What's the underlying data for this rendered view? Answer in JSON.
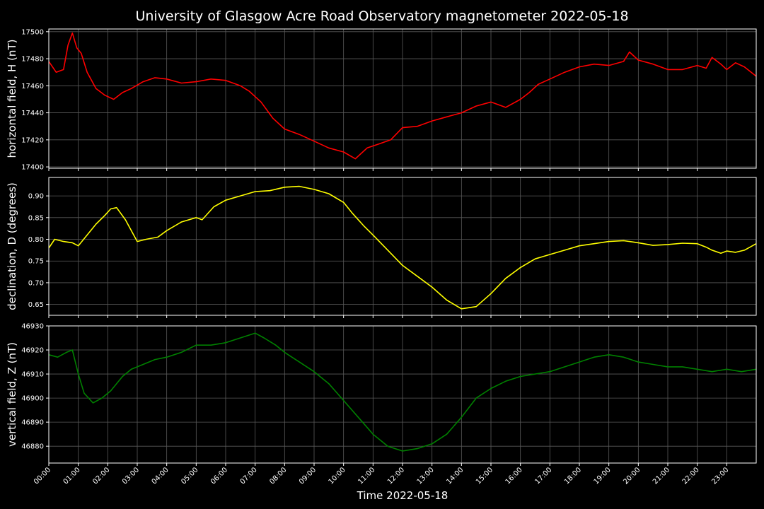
{
  "chart_data": {
    "title": "University of Glasgow Acre Road Observatory magnetometer 2022-05-18",
    "xlabel": "Time 2022-05-18",
    "x_ticks": [
      "00:00",
      "01:00",
      "02:00",
      "03:00",
      "04:00",
      "05:00",
      "06:00",
      "07:00",
      "08:00",
      "09:00",
      "10:00",
      "11:00",
      "12:00",
      "13:00",
      "14:00",
      "15:00",
      "16:00",
      "17:00",
      "18:00",
      "19:00",
      "20:00",
      "21:00",
      "22:00",
      "23:00"
    ],
    "xlim_hours": [
      0,
      24
    ],
    "grid": true,
    "panels": [
      {
        "type": "line",
        "ylabel": "horizontal field, H (nT)",
        "color": "#ff0000",
        "ylim": [
          17399,
          17502
        ],
        "y_ticks": [
          "17400",
          "17420",
          "17440",
          "17460",
          "17480",
          "17500"
        ],
        "y_tick_values": [
          17400,
          17420,
          17440,
          17460,
          17480,
          17500
        ],
        "x_hours": [
          0,
          0.25,
          0.5,
          0.65,
          0.8,
          0.95,
          1.1,
          1.3,
          1.6,
          1.9,
          2.2,
          2.5,
          2.8,
          3.2,
          3.6,
          4.0,
          4.5,
          5.0,
          5.5,
          6.0,
          6.5,
          6.8,
          7.2,
          7.6,
          8.0,
          8.5,
          9.0,
          9.5,
          10.0,
          10.4,
          10.8,
          11.2,
          11.6,
          12.0,
          12.5,
          13.0,
          13.5,
          14.0,
          14.5,
          15.0,
          15.5,
          16.0,
          16.3,
          16.6,
          17.0,
          17.5,
          18.0,
          18.5,
          19.0,
          19.5,
          19.7,
          20.0,
          20.5,
          21.0,
          21.5,
          22.0,
          22.3,
          22.5,
          22.8,
          23.0,
          23.3,
          23.6,
          24.0
        ],
        "values": [
          17478,
          17470,
          17472,
          17490,
          17499,
          17488,
          17484,
          17470,
          17458,
          17453,
          17450,
          17455,
          17458,
          17463,
          17466,
          17465,
          17462,
          17463,
          17465,
          17464,
          17460,
          17456,
          17448,
          17436,
          17428,
          17424,
          17419,
          17414,
          17411,
          17406,
          17414,
          17417,
          17420,
          17429,
          17430,
          17434,
          17437,
          17440,
          17445,
          17448,
          17444,
          17450,
          17455,
          17461,
          17465,
          17470,
          17474,
          17476,
          17475,
          17478,
          17485,
          17479,
          17476,
          17472,
          17472,
          17475,
          17473,
          17481,
          17476,
          17472,
          17477,
          17474,
          17467
        ]
      },
      {
        "type": "line",
        "ylabel": "declination, D (degrees)",
        "color": "#ffff00",
        "ylim": [
          0.625,
          0.9425
        ],
        "y_ticks": [
          "0.65",
          "0.70",
          "0.75",
          "0.80",
          "0.85",
          "0.90"
        ],
        "y_tick_values": [
          0.65,
          0.7,
          0.75,
          0.8,
          0.85,
          0.9
        ],
        "x_hours": [
          0,
          0.2,
          0.5,
          0.8,
          1.0,
          1.3,
          1.6,
          1.9,
          2.1,
          2.3,
          2.6,
          3.0,
          3.3,
          3.7,
          4.0,
          4.5,
          5.0,
          5.2,
          5.6,
          6.0,
          6.5,
          7.0,
          7.5,
          8.0,
          8.5,
          9.0,
          9.5,
          10.0,
          10.3,
          10.7,
          11.0,
          11.5,
          12.0,
          12.5,
          13.0,
          13.5,
          14.0,
          14.5,
          15.0,
          15.5,
          16.0,
          16.5,
          17.0,
          17.5,
          18.0,
          18.5,
          19.0,
          19.5,
          20.0,
          20.5,
          21.0,
          21.5,
          22.0,
          22.3,
          22.5,
          22.8,
          23.0,
          23.3,
          23.6,
          24.0
        ],
        "values": [
          0.78,
          0.8,
          0.795,
          0.792,
          0.785,
          0.81,
          0.835,
          0.855,
          0.87,
          0.873,
          0.845,
          0.795,
          0.8,
          0.805,
          0.82,
          0.84,
          0.85,
          0.845,
          0.875,
          0.89,
          0.9,
          0.91,
          0.912,
          0.92,
          0.922,
          0.915,
          0.905,
          0.885,
          0.86,
          0.83,
          0.81,
          0.775,
          0.74,
          0.715,
          0.69,
          0.66,
          0.64,
          0.645,
          0.675,
          0.71,
          0.735,
          0.755,
          0.765,
          0.775,
          0.785,
          0.79,
          0.795,
          0.797,
          0.792,
          0.786,
          0.788,
          0.791,
          0.79,
          0.782,
          0.775,
          0.768,
          0.773,
          0.77,
          0.775,
          0.79
        ]
      },
      {
        "type": "line",
        "ylabel": "vertical field, Z (nT)",
        "color": "#008000",
        "ylim": [
          46873,
          46930
        ],
        "y_ticks": [
          "46880",
          "46890",
          "46900",
          "46910",
          "46920",
          "46930"
        ],
        "y_tick_values": [
          46880,
          46890,
          46900,
          46910,
          46920,
          46930
        ],
        "x_hours": [
          0,
          0.3,
          0.6,
          0.8,
          1.0,
          1.2,
          1.5,
          1.8,
          2.1,
          2.5,
          2.8,
          3.2,
          3.6,
          4.0,
          4.5,
          5.0,
          5.5,
          6.0,
          6.5,
          7.0,
          7.3,
          7.7,
          8.0,
          8.5,
          9.0,
          9.5,
          10.0,
          10.5,
          11.0,
          11.5,
          12.0,
          12.5,
          13.0,
          13.5,
          14.0,
          14.5,
          15.0,
          15.5,
          16.0,
          16.5,
          17.0,
          17.5,
          18.0,
          18.5,
          19.0,
          19.5,
          20.0,
          20.5,
          21.0,
          21.5,
          22.0,
          22.5,
          23.0,
          23.5,
          24.0
        ],
        "values": [
          46918,
          46917,
          46919,
          46920,
          46910,
          46902,
          46898,
          46900,
          46903,
          46909,
          46912,
          46914,
          46916,
          46917,
          46919,
          46922,
          46922,
          46923,
          46925,
          46927,
          46925,
          46922,
          46919,
          46915,
          46911,
          46906,
          46899,
          46892,
          46885,
          46880,
          46878,
          46879,
          46881,
          46885,
          46892,
          46900,
          46904,
          46907,
          46909,
          46910,
          46911,
          46913,
          46915,
          46917,
          46918,
          46917,
          46915,
          46914,
          46913,
          46913,
          46912,
          46911,
          46912,
          46911,
          46912
        ]
      }
    ]
  }
}
